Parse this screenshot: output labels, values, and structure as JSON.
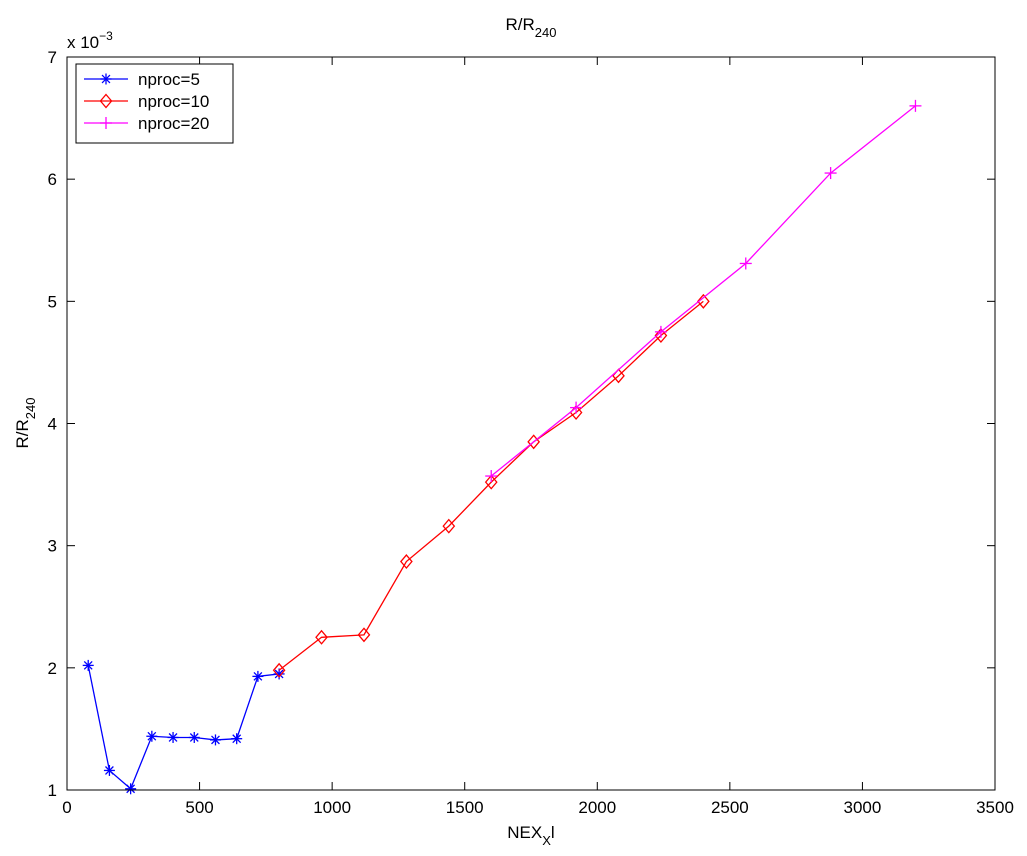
{
  "chart_data": {
    "type": "line",
    "title": {
      "main": "R/R",
      "sub": "240"
    },
    "xlabel": {
      "main": "NEX",
      "sub": "X",
      "suffix": "l"
    },
    "ylabel": {
      "main": "R/R",
      "sub": "240"
    },
    "exponent_label": {
      "prefix": "x 10",
      "sup": "−3"
    },
    "xlim": [
      0,
      3500
    ],
    "ylim": [
      1,
      7
    ],
    "x_ticks": [
      0,
      500,
      1000,
      1500,
      2000,
      2500,
      3000,
      3500
    ],
    "y_ticks": [
      1,
      2,
      3,
      4,
      5,
      6,
      7
    ],
    "grid": false,
    "legend_position": "top-left",
    "series": [
      {
        "name": "nproc=5",
        "color": "#0000ff",
        "marker": "asterisk",
        "x": [
          80,
          160,
          240,
          320,
          400,
          480,
          560,
          640,
          720,
          800
        ],
        "y": [
          2.02,
          1.16,
          1.01,
          1.44,
          1.43,
          1.43,
          1.41,
          1.42,
          1.93,
          1.95
        ]
      },
      {
        "name": "nproc=10",
        "color": "#ff0000",
        "marker": "diamond",
        "x": [
          800,
          960,
          1120,
          1280,
          1440,
          1600,
          1760,
          1920,
          2080,
          2240,
          2400
        ],
        "y": [
          1.98,
          2.25,
          2.27,
          2.87,
          3.16,
          3.52,
          3.85,
          4.09,
          4.39,
          4.72,
          5.0
        ]
      },
      {
        "name": "nproc=20",
        "color": "#ff00ff",
        "marker": "plus",
        "x": [
          1600,
          1920,
          2240,
          2560,
          2880,
          3200
        ],
        "y": [
          3.57,
          4.13,
          4.75,
          5.31,
          6.05,
          6.6
        ]
      }
    ]
  }
}
